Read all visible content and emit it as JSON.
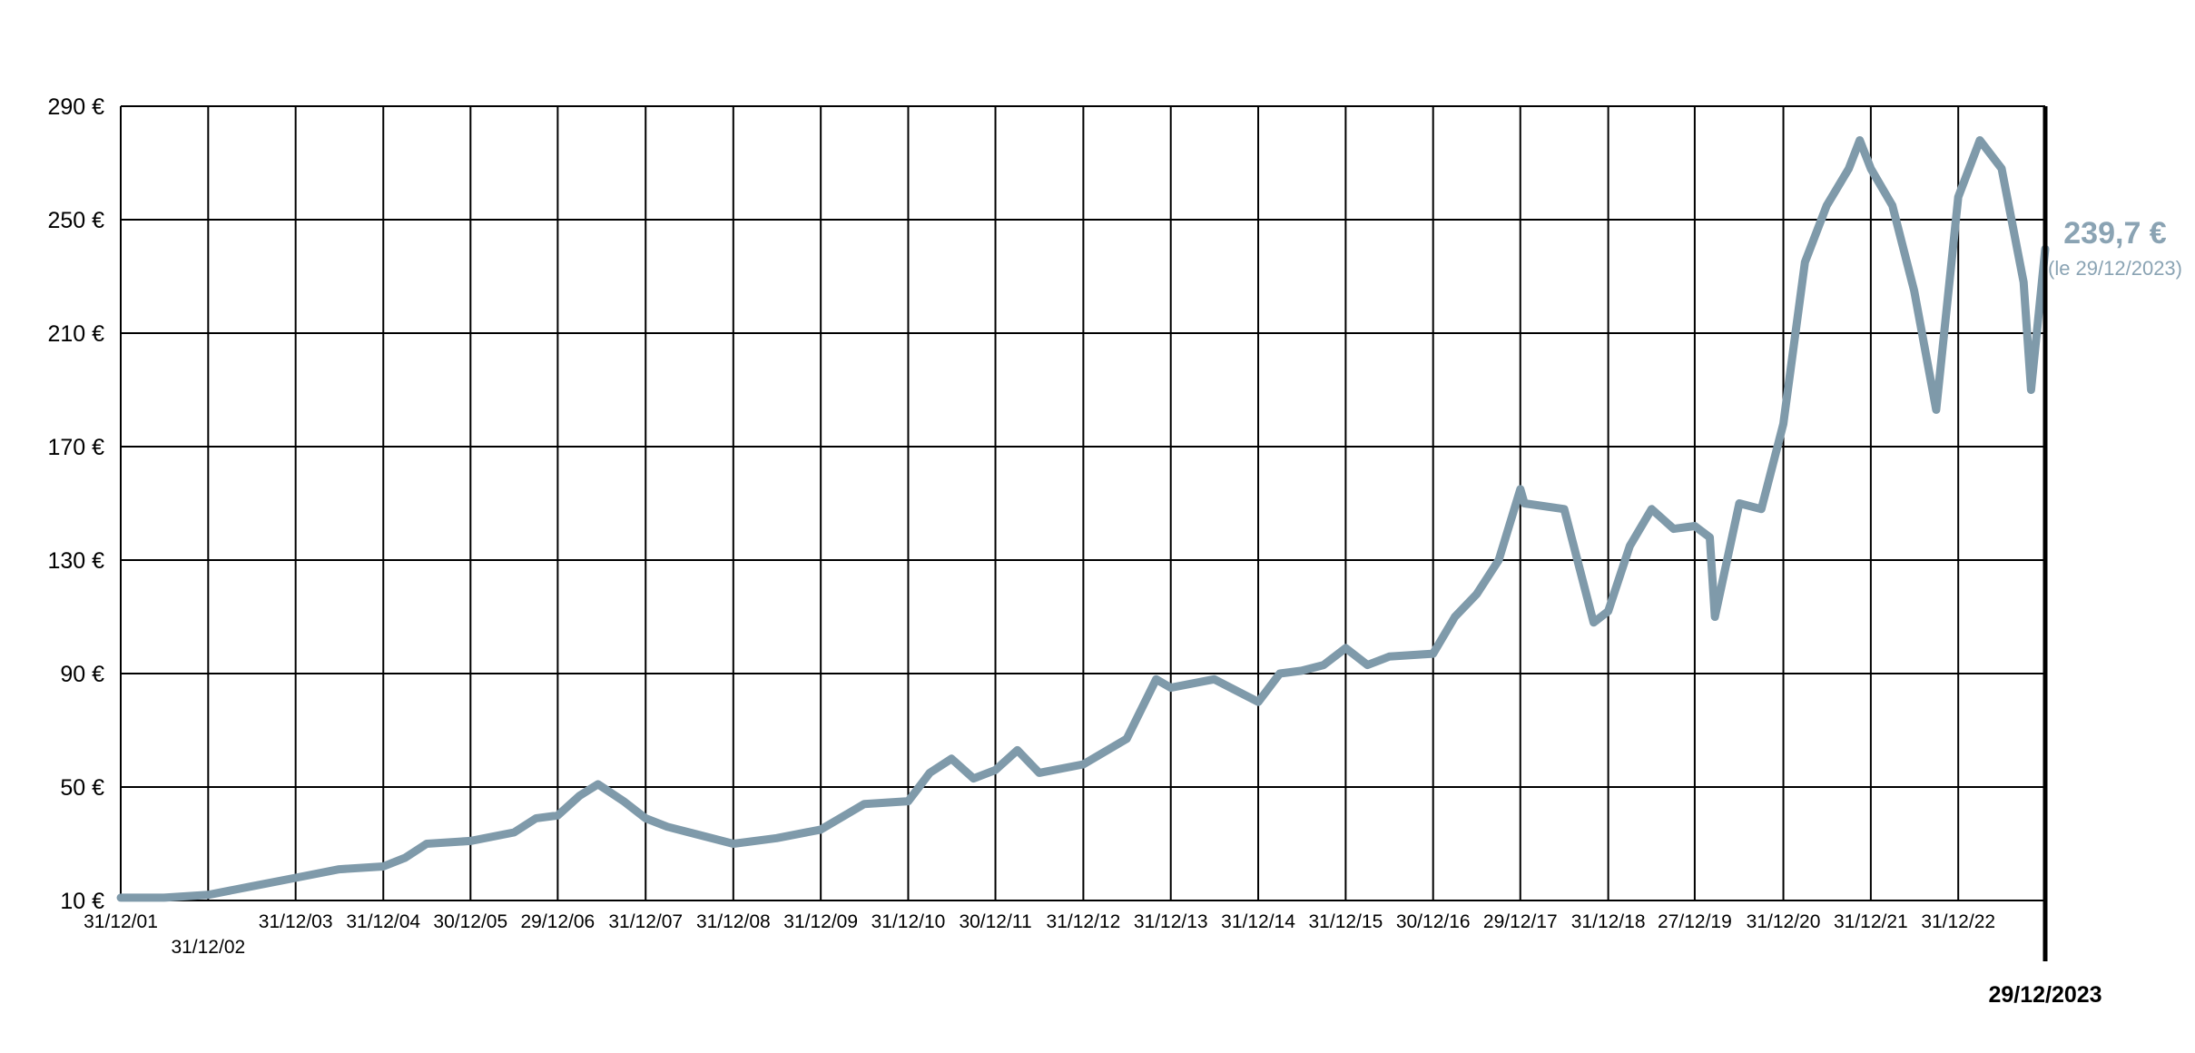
{
  "chart_data": {
    "type": "line",
    "currency_suffix": " €",
    "ylim": [
      10,
      290
    ],
    "yticks": [
      10,
      50,
      90,
      130,
      170,
      210,
      250,
      290
    ],
    "ytick_labels": [
      "10 €",
      "50 €",
      "90 €",
      "130 €",
      "170 €",
      "210 €",
      "250 €",
      "290 €"
    ],
    "xlim": [
      "2001-12-31",
      "2023-12-29"
    ],
    "xticks": [
      {
        "date": "2001-12-31",
        "label": "31/12/01"
      },
      {
        "date": "2002-12-31",
        "label": "31/12/02"
      },
      {
        "date": "2003-12-31",
        "label": "31/12/03"
      },
      {
        "date": "2004-12-31",
        "label": "31/12/04"
      },
      {
        "date": "2005-12-30",
        "label": "30/12/05"
      },
      {
        "date": "2006-12-29",
        "label": "29/12/06"
      },
      {
        "date": "2007-12-31",
        "label": "31/12/07"
      },
      {
        "date": "2008-12-31",
        "label": "31/12/08"
      },
      {
        "date": "2009-12-31",
        "label": "31/12/09"
      },
      {
        "date": "2010-12-31",
        "label": "31/12/10"
      },
      {
        "date": "2011-12-30",
        "label": "30/12/11"
      },
      {
        "date": "2012-12-31",
        "label": "31/12/12"
      },
      {
        "date": "2013-12-31",
        "label": "31/12/13"
      },
      {
        "date": "2014-12-31",
        "label": "31/12/14"
      },
      {
        "date": "2015-12-31",
        "label": "31/12/15"
      },
      {
        "date": "2016-12-30",
        "label": "30/12/16"
      },
      {
        "date": "2017-12-29",
        "label": "29/12/17"
      },
      {
        "date": "2018-12-31",
        "label": "31/12/18"
      },
      {
        "date": "2019-12-27",
        "label": "27/12/19"
      },
      {
        "date": "2020-12-31",
        "label": "31/12/20"
      },
      {
        "date": "2021-12-31",
        "label": "31/12/21"
      },
      {
        "date": "2022-12-31",
        "label": "31/12/22"
      }
    ],
    "end_date_label": "29/12/2023",
    "last_value_label": "239,7 €",
    "last_date_label": "(le 29/12/2023)",
    "grid": true,
    "colors": {
      "line": "#7f9aaa",
      "grid": "#000000",
      "annotation": "#8aa3b3"
    },
    "series": [
      {
        "x": [
          "2001-12-31",
          "2002-06-30",
          "2002-12-31",
          "2003-06-30",
          "2003-12-31",
          "2004-06-30",
          "2004-12-31",
          "2005-03-31",
          "2005-06-30",
          "2005-12-30",
          "2006-06-30",
          "2006-09-30",
          "2006-12-29",
          "2007-03-31",
          "2007-06-15",
          "2007-09-30",
          "2007-12-31",
          "2008-03-31",
          "2008-06-30",
          "2008-12-31",
          "2009-06-30",
          "2009-12-31",
          "2010-06-30",
          "2010-12-31",
          "2011-03-31",
          "2011-06-30",
          "2011-09-30",
          "2011-12-30",
          "2012-03-31",
          "2012-06-30",
          "2012-12-31",
          "2013-06-30",
          "2013-10-31",
          "2013-12-31",
          "2014-06-30",
          "2014-12-31",
          "2015-03-31",
          "2015-06-30",
          "2015-09-30",
          "2015-12-31",
          "2016-03-31",
          "2016-06-30",
          "2016-12-30",
          "2017-03-31",
          "2017-06-30",
          "2017-09-30",
          "2017-12-29",
          "2018-01-15",
          "2018-06-30",
          "2018-10-31",
          "2018-12-31",
          "2019-03-31",
          "2019-06-30",
          "2019-09-30",
          "2019-12-27",
          "2020-02-28",
          "2020-03-20",
          "2020-06-30",
          "2020-09-30",
          "2020-12-31",
          "2021-03-31",
          "2021-06-30",
          "2021-09-30",
          "2021-11-15",
          "2021-12-31",
          "2022-03-31",
          "2022-06-30",
          "2022-09-30",
          "2022-12-31",
          "2023-03-31",
          "2023-06-30",
          "2023-09-30",
          "2023-10-31",
          "2023-12-29"
        ],
        "values": [
          11,
          11,
          12,
          15,
          18,
          21,
          22,
          25,
          30,
          31,
          34,
          39,
          40,
          47,
          51,
          45,
          39,
          36,
          34,
          30,
          32,
          35,
          44,
          45,
          55,
          60,
          53,
          56,
          63,
          55,
          58,
          67,
          88,
          85,
          88,
          80,
          90,
          91,
          93,
          99,
          93,
          96,
          97,
          110,
          118,
          130,
          155,
          150,
          148,
          108,
          112,
          135,
          148,
          141,
          142,
          138,
          110,
          150,
          148,
          178,
          235,
          255,
          268,
          278,
          268,
          255,
          225,
          183,
          258,
          278,
          268,
          228,
          190,
          239.7
        ]
      }
    ]
  }
}
